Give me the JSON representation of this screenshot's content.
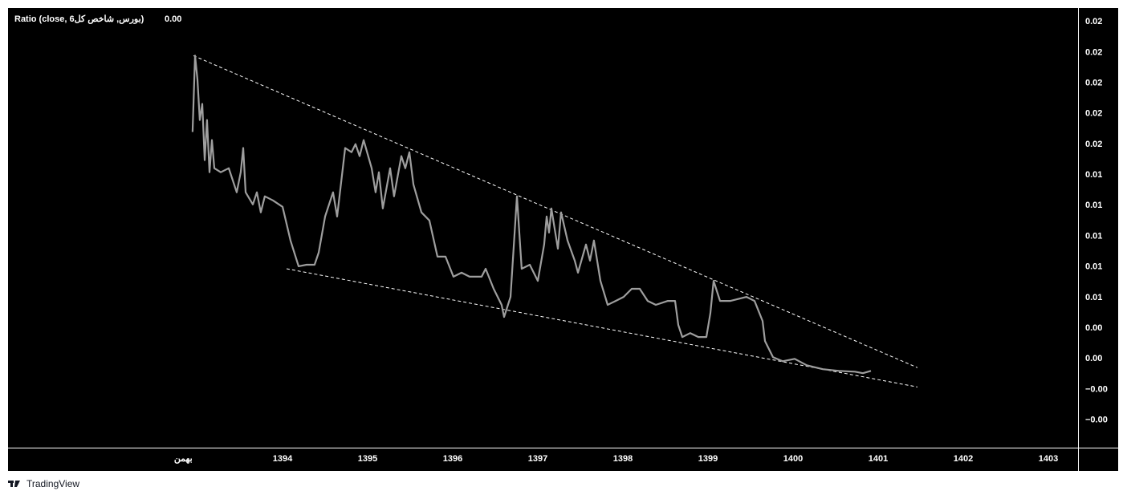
{
  "chart_data": {
    "type": "line",
    "title": "Ratio (close, بورس, شاخص کل6)",
    "last_value": "0.00",
    "brand": "TradingView",
    "color": "#9e9e9e",
    "x": [
      1392.943,
      1392.972,
      1393.0,
      1393.028,
      1393.057,
      1393.085,
      1393.113,
      1393.142,
      1393.17,
      1393.198,
      1393.274,
      1393.368,
      1393.462,
      1393.509,
      1393.538,
      1393.566,
      1393.651,
      1393.698,
      1393.745,
      1393.792,
      1393.887,
      1394.0,
      1394.094,
      1394.189,
      1394.283,
      1394.377,
      1394.425,
      1394.5,
      1394.594,
      1394.642,
      1394.736,
      1394.811,
      1394.858,
      1394.906,
      1394.953,
      1395.047,
      1395.094,
      1395.132,
      1395.179,
      1395.264,
      1395.311,
      1395.396,
      1395.443,
      1395.491,
      1395.538,
      1395.632,
      1395.726,
      1395.821,
      1395.915,
      1396.009,
      1396.104,
      1396.198,
      1396.34,
      1396.387,
      1396.481,
      1396.575,
      1396.604,
      1396.679,
      1396.755,
      1396.811,
      1396.906,
      1397.0,
      1397.075,
      1397.104,
      1397.132,
      1397.16,
      1397.236,
      1397.274,
      1397.349,
      1397.434,
      1397.472,
      1397.566,
      1397.613,
      1397.66,
      1397.736,
      1397.821,
      1397.915,
      1398.009,
      1398.104,
      1398.198,
      1398.292,
      1398.387,
      1398.528,
      1398.613,
      1398.651,
      1398.698,
      1398.792,
      1398.887,
      1398.981,
      1399.028,
      1399.066,
      1399.142,
      1399.264,
      1399.453,
      1399.547,
      1399.642,
      1399.67,
      1399.764,
      1399.877,
      1400.019,
      1400.16,
      1400.349,
      1400.538,
      1400.726,
      1400.821,
      1400.915
    ],
    "values": [
      0.01631,
      0.02129,
      0.01972,
      0.01709,
      0.01814,
      0.01447,
      0.01709,
      0.01368,
      0.01578,
      0.01394,
      0.01368,
      0.01394,
      0.01237,
      0.01368,
      0.01526,
      0.01237,
      0.01158,
      0.01237,
      0.01106,
      0.01211,
      0.01184,
      0.01142,
      0.00922,
      0.00754,
      0.00764,
      0.00764,
      0.00843,
      0.01079,
      0.01237,
      0.01079,
      0.01526,
      0.01499,
      0.01552,
      0.01473,
      0.01578,
      0.01394,
      0.01237,
      0.01368,
      0.01132,
      0.01394,
      0.01211,
      0.01473,
      0.01394,
      0.01499,
      0.01289,
      0.01106,
      0.01053,
      0.00817,
      0.00817,
      0.00686,
      0.00712,
      0.00686,
      0.00686,
      0.00738,
      0.00607,
      0.00502,
      0.00423,
      0.00554,
      0.01211,
      0.00738,
      0.00764,
      0.00659,
      0.00896,
      0.01079,
      0.00974,
      0.01132,
      0.00869,
      0.01106,
      0.00922,
      0.00791,
      0.00712,
      0.00896,
      0.00791,
      0.00922,
      0.00659,
      0.00502,
      0.00528,
      0.00554,
      0.00607,
      0.00607,
      0.00528,
      0.00502,
      0.00528,
      0.00528,
      0.00371,
      0.00292,
      0.00318,
      0.00292,
      0.00292,
      0.00449,
      0.00659,
      0.00528,
      0.00528,
      0.00554,
      0.00528,
      0.00397,
      0.00266,
      0.00161,
      0.00134,
      0.0015,
      0.00108,
      0.00082,
      0.00071,
      0.00066,
      0.00056,
      0.00071
    ],
    "trendlines": [
      {
        "x": [
          1392.953,
          1401.462
        ],
        "values": [
          0.02129,
          0.00092
        ]
      },
      {
        "x": [
          1394.047,
          1401.462
        ],
        "values": [
          0.00738,
          -0.00034
        ]
      }
    ],
    "xlim": [
      1390.774,
      1403.349
    ],
    "xticks": [
      {
        "value": 1392.833,
        "label": "بهمن"
      },
      1394,
      1395,
      1396,
      1397,
      1398,
      1399,
      1400,
      1401,
      1402,
      1403
    ],
    "ylim": [
      -0.0043,
      0.0244
    ],
    "yticks": [
      {
        "value": -0.0025,
        "label": "−0.00"
      },
      {
        "value": -0.0005,
        "label": "−0.00"
      },
      {
        "value": 0.0015,
        "label": "0.00"
      },
      {
        "value": 0.0035,
        "label": "0.00"
      },
      {
        "value": 0.0055,
        "label": "0.01"
      },
      {
        "value": 0.0075,
        "label": "0.01"
      },
      {
        "value": 0.0095,
        "label": "0.01"
      },
      {
        "value": 0.0115,
        "label": "0.01"
      },
      {
        "value": 0.0135,
        "label": "0.01"
      },
      {
        "value": 0.0155,
        "label": "0.02"
      },
      {
        "value": 0.0175,
        "label": "0.02"
      },
      {
        "value": 0.0195,
        "label": "0.02"
      },
      {
        "value": 0.0215,
        "label": "0.02"
      },
      {
        "value": 0.0235,
        "label": "0.02"
      }
    ],
    "grid": false
  }
}
